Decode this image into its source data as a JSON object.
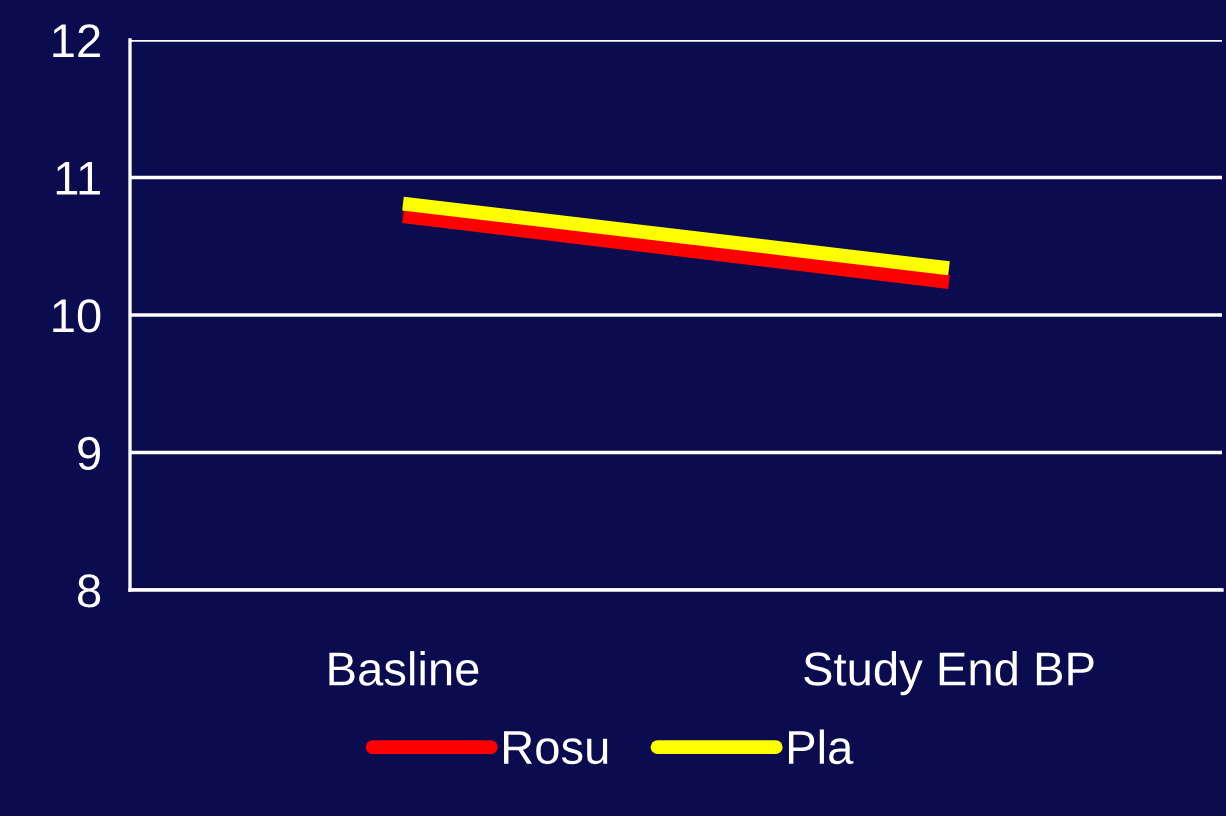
{
  "chart_data": {
    "type": "line",
    "categories": [
      "Basline",
      "Study End BP"
    ],
    "series": [
      {
        "name": "Rosu",
        "color": "#ff0000",
        "values": [
          10.72,
          10.24
        ]
      },
      {
        "name": "Pla",
        "color": "#ffff00",
        "values": [
          10.81,
          10.34
        ]
      }
    ],
    "ylim": [
      8,
      12
    ],
    "yticks": [
      8,
      9,
      10,
      11,
      12
    ],
    "grid": "y",
    "legend": "bottom",
    "marker": "none",
    "line_style": "solid"
  }
}
